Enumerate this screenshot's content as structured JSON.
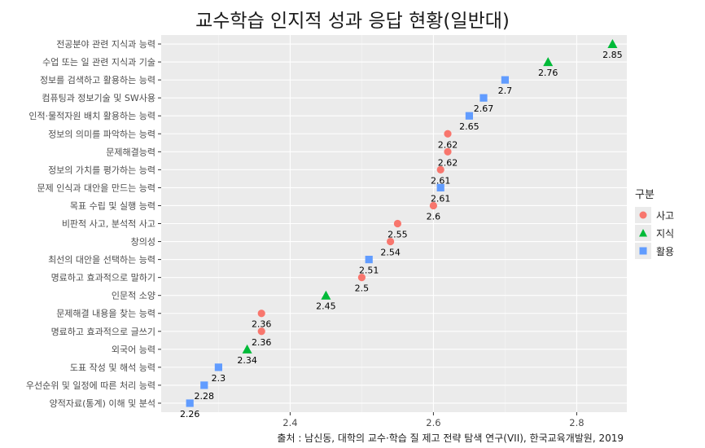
{
  "chart_data": {
    "type": "scatter",
    "title": "교수학습 인지적 성과 응답 현황(일반대)",
    "caption": "출처 : 남신동, 대학의 교수·학습 질 제고 전략 탐색 연구(VII), 한국교육개발원, 2019",
    "xlim": [
      2.22,
      2.87
    ],
    "x_ticks": [
      2.4,
      2.6,
      2.8
    ],
    "x_tick_labels": [
      "2.4",
      "2.6",
      "2.8"
    ],
    "grid": true,
    "legend": {
      "title": "구분",
      "position": "right",
      "entries": [
        {
          "name": "사고",
          "color": "#F8766D",
          "shape": "circle"
        },
        {
          "name": "지식",
          "color": "#00BA38",
          "shape": "triangle"
        },
        {
          "name": "활용",
          "color": "#619CFF",
          "shape": "square"
        }
      ]
    },
    "points": [
      {
        "label": "전공분야 관련 지식과 능력",
        "value": 2.85,
        "value_label": "2.85",
        "group": "지식"
      },
      {
        "label": "수업 또는 일 관련 지식과 기술",
        "value": 2.76,
        "value_label": "2.76",
        "group": "지식"
      },
      {
        "label": "정보를 검색하고 활용하는 능력",
        "value": 2.7,
        "value_label": "2.7",
        "group": "활용"
      },
      {
        "label": "컴퓨팅과 정보기술 및 SW사용",
        "value": 2.67,
        "value_label": "2.67",
        "group": "활용"
      },
      {
        "label": "인적·물적자원 배치 활용하는 능력",
        "value": 2.65,
        "value_label": "2.65",
        "group": "활용"
      },
      {
        "label": "정보의 의미를 파악하는 능력",
        "value": 2.62,
        "value_label": "2.62",
        "group": "사고"
      },
      {
        "label": "문제해결능력",
        "value": 2.62,
        "value_label": "2.62",
        "group": "사고"
      },
      {
        "label": "정보의 가치를 평가하는 능력",
        "value": 2.61,
        "value_label": "2.61",
        "group": "사고"
      },
      {
        "label": "문제 인식과 대안을 만드는 능력",
        "value": 2.61,
        "value_label": "2.61",
        "group": "활용"
      },
      {
        "label": "목표 수립 및 실행 능력",
        "value": 2.6,
        "value_label": "2.6",
        "group": "사고"
      },
      {
        "label": "비판적 사고, 분석적 사고",
        "value": 2.55,
        "value_label": "2.55",
        "group": "사고"
      },
      {
        "label": "창의성",
        "value": 2.54,
        "value_label": "2.54",
        "group": "사고"
      },
      {
        "label": "최선의 대안을 선택하는 능력",
        "value": 2.51,
        "value_label": "2.51",
        "group": "활용"
      },
      {
        "label": "명료하고 효과적으로 말하기",
        "value": 2.5,
        "value_label": "2.5",
        "group": "사고"
      },
      {
        "label": "인문적 소양",
        "value": 2.45,
        "value_label": "2.45",
        "group": "지식"
      },
      {
        "label": "문제해결 내용을 찾는 능력",
        "value": 2.36,
        "value_label": "2.36",
        "group": "사고"
      },
      {
        "label": "명료하고 효과적으로 글쓰기",
        "value": 2.36,
        "value_label": "2.36",
        "group": "사고"
      },
      {
        "label": "외국어 능력",
        "value": 2.34,
        "value_label": "2.34",
        "group": "지식"
      },
      {
        "label": "도표 작성 및 해석 능력",
        "value": 2.3,
        "value_label": "2.3",
        "group": "활용"
      },
      {
        "label": "우선순위 및 일정에 따른 처리 능력",
        "value": 2.28,
        "value_label": "2.28",
        "group": "활용"
      },
      {
        "label": "양적자료(통계) 이해 및 분석",
        "value": 2.26,
        "value_label": "2.26",
        "group": "활용"
      }
    ]
  }
}
